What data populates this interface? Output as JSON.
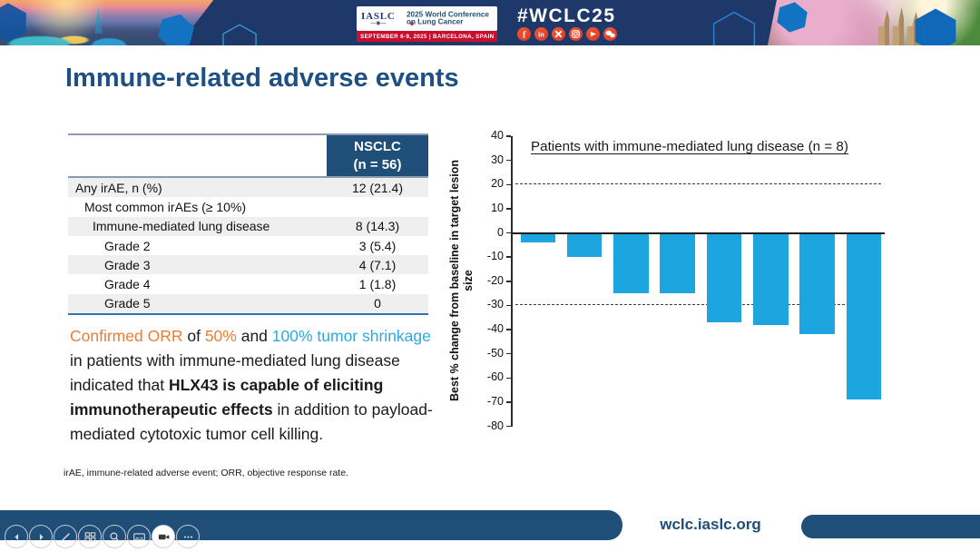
{
  "header": {
    "hashtag": "#WCLC25",
    "logo": {
      "iaslc": "IASLC",
      "conference_line1": "2025 World Conference",
      "conference_line2": "on Lung Cancer",
      "date_location": "SEPTEMBER 6-9, 2025   |   BARCELONA, SPAIN"
    },
    "social_icons": [
      "facebook-icon",
      "linkedin-icon",
      "x-icon",
      "instagram-icon",
      "youtube-icon",
      "wechat-icon"
    ]
  },
  "slide": {
    "title": "Immune-related adverse events",
    "table": {
      "header": {
        "col2_line1": "NSCLC",
        "col2_line2": "(n = 56)"
      },
      "rows": [
        {
          "label": "Any irAE, n (%)",
          "value": "12 (21.4)",
          "indent": 0
        },
        {
          "label": "Most common irAEs (≥ 10%)",
          "value": "",
          "indent": 1
        },
        {
          "label": "Immune-mediated lung disease",
          "value": "8 (14.3)",
          "indent": 2
        },
        {
          "label": "Grade 2",
          "value": "3 (5.4)",
          "indent": 3
        },
        {
          "label": "Grade 3",
          "value": "4 (7.1)",
          "indent": 3
        },
        {
          "label": "Grade 4",
          "value": "1 (1.8)",
          "indent": 3
        },
        {
          "label": "Grade 5",
          "value": "0",
          "indent": 3
        }
      ]
    },
    "summary": {
      "segments": [
        {
          "text": "Confirmed ORR",
          "color": "#ED7D31",
          "bold": false
        },
        {
          "text": " of ",
          "color": "#1a1a1a",
          "bold": false
        },
        {
          "text": "50%",
          "color": "#ED7D31",
          "bold": false
        },
        {
          "text": " and ",
          "color": "#1a1a1a",
          "bold": false
        },
        {
          "text": "100% tumor shrinkage",
          "color": "#29ABE2",
          "bold": false
        },
        {
          "text": " in patients with immune-mediated lung disease indicated that ",
          "color": "#1a1a1a",
          "bold": false
        },
        {
          "text": "HLX43 is capable of eliciting immunotherapeutic effects",
          "color": "#1a1a1a",
          "bold": true
        },
        {
          "text": " in addition to payload-mediated cytotoxic tumor cell killing.",
          "color": "#1a1a1a",
          "bold": false
        }
      ]
    },
    "footnote": "irAE, immune-related adverse event; ORR, objective response rate."
  },
  "chart_data": {
    "type": "bar",
    "title": "Patients with immune-mediated lung disease (n = 8)",
    "ylabel": "Best % change from baseline in target lesion size",
    "xlabel": "",
    "values": [
      -4,
      -10,
      -25,
      -25,
      -37,
      -38,
      -42,
      -69
    ],
    "ylim": [
      -80,
      40
    ],
    "yticks": [
      40,
      30,
      20,
      10,
      0,
      -10,
      -20,
      -30,
      -40,
      -50,
      -60,
      -70,
      -80
    ],
    "reference_lines": [
      20,
      -30
    ],
    "bar_color": "#1CA5DE",
    "grid": false,
    "legend": false
  },
  "footer": {
    "url": "wclc.iaslc.org"
  },
  "presenter_controls": [
    "previous",
    "next",
    "pen",
    "see-all-slides",
    "zoom",
    "subtitles",
    "camera",
    "more-options"
  ],
  "colors": {
    "accent_navy": "#1F4E79",
    "banner_navy": "#1D3869",
    "strip_red": "#C8102E",
    "orange": "#ED7D31",
    "light_blue": "#29ABE2",
    "bar_blue": "#1CA5DE",
    "social_red": "#E8472F"
  }
}
